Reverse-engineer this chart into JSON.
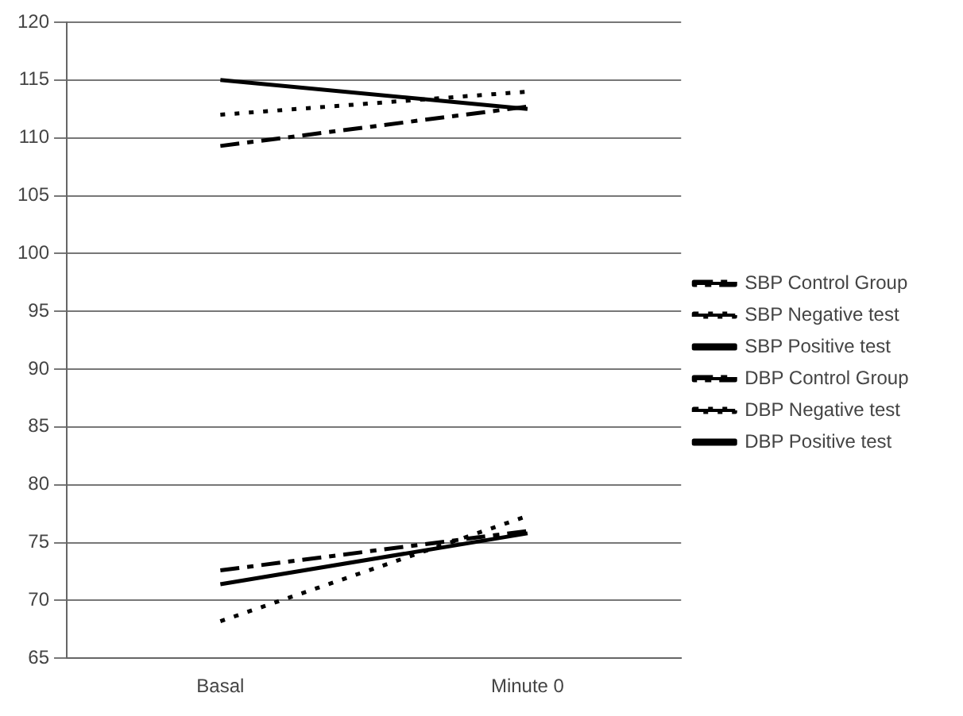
{
  "chart_data": {
    "type": "line",
    "categories": [
      "Basal",
      "Minute 0"
    ],
    "series": [
      {
        "name": "SBP Control Group",
        "color": "#000000",
        "line_style": "dashed",
        "values": [
          109.3,
          112.7
        ]
      },
      {
        "name": "SBP Negative test",
        "color": "#000000",
        "line_style": "dotted",
        "values": [
          112,
          114
        ]
      },
      {
        "name": "SBP Positive test",
        "color": "#000000",
        "line_style": "solid",
        "values": [
          115,
          112.5
        ]
      },
      {
        "name": "DBP Control Group",
        "color": "#000000",
        "line_style": "dashed",
        "values": [
          72.6,
          76
        ]
      },
      {
        "name": "DBP Negative test",
        "color": "#000000",
        "line_style": "dotted",
        "values": [
          68.2,
          77.3
        ]
      },
      {
        "name": "DBP Positive test",
        "color": "#000000",
        "line_style": "solid",
        "values": [
          71.4,
          75.8
        ]
      }
    ],
    "ylim": [
      65,
      120
    ],
    "yticks": [
      65,
      70,
      75,
      80,
      85,
      90,
      95,
      100,
      105,
      110,
      115,
      120
    ],
    "grid": "y",
    "legend": "right",
    "marker": "none"
  }
}
